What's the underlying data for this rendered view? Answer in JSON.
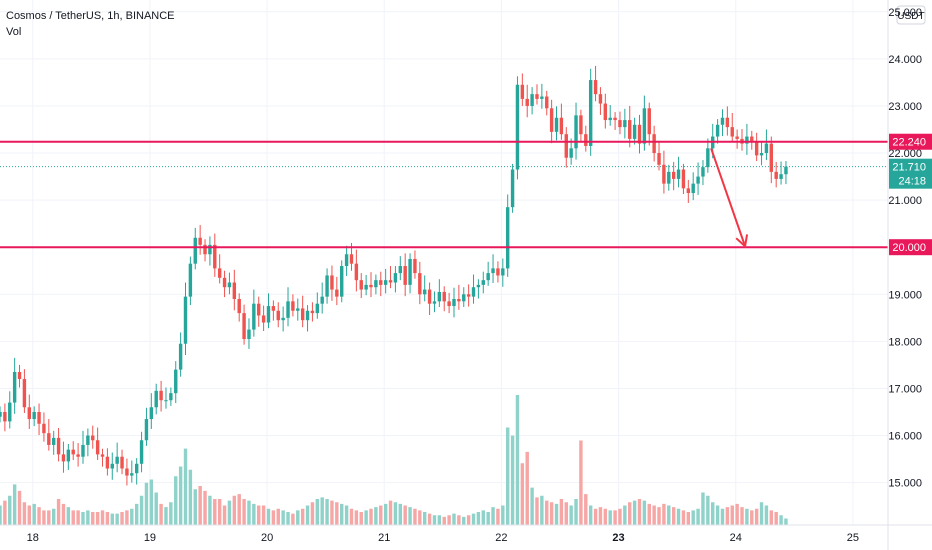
{
  "header": {
    "symbol": "Cosmos / TetherUS, 1h, BINANCE",
    "volume_label": "Vol",
    "currency": "USDT"
  },
  "price_tag": {
    "value": "21.710",
    "countdown": "24:18"
  },
  "colors": {
    "up": "#26a69a",
    "down": "#ef5350",
    "up_volume": "#8fd2c9",
    "down_volume": "#f5a6a5",
    "level_line": "#e8185b",
    "arrow": "#f23645",
    "grid": "#f0f3fa",
    "axis_text": "#131722"
  },
  "chart_data": {
    "type": "candlestick",
    "ylim": [
      14.1,
      25.25
    ],
    "y_ticks": [
      15.0,
      16.0,
      17.0,
      18.0,
      19.0,
      20.0,
      21.0,
      22.0,
      23.0,
      24.0,
      25.0
    ],
    "y_tick_labels": [
      "15.000",
      "16.000",
      "17.000",
      "18.000",
      "19.000",
      "20.000",
      "21.000",
      "22.000",
      "23.000",
      "24.000",
      "25.000"
    ],
    "x_ticks": [
      18,
      19,
      20,
      21,
      22,
      23,
      24,
      25
    ],
    "x_tick_labels": [
      "18",
      "19",
      "20",
      "21",
      "22",
      "23",
      "24",
      "25"
    ],
    "xlim": [
      17.72,
      25.3
    ],
    "candle_start": 17.72,
    "candle_interval_days": 0.04167,
    "closes": [
      16.5,
      16.3,
      16.7,
      17.35,
      17.2,
      16.6,
      16.35,
      16.5,
      16.25,
      16.05,
      15.8,
      15.95,
      15.6,
      15.45,
      15.7,
      15.6,
      15.55,
      15.8,
      16.0,
      15.9,
      15.6,
      15.55,
      15.3,
      15.4,
      15.55,
      15.3,
      15.15,
      15.2,
      15.4,
      15.9,
      16.35,
      16.6,
      16.95,
      16.75,
      16.75,
      16.9,
      17.4,
      17.95,
      18.95,
      19.65,
      20.2,
      20.05,
      19.85,
      20.05,
      19.55,
      19.35,
      19.15,
      19.25,
      18.9,
      18.6,
      18.05,
      18.25,
      18.8,
      18.55,
      18.4,
      18.75,
      18.65,
      18.45,
      18.5,
      18.85,
      18.65,
      18.7,
      18.45,
      18.65,
      18.6,
      18.8,
      18.95,
      19.4,
      19.1,
      18.95,
      19.6,
      19.85,
      19.65,
      19.3,
      19.1,
      19.2,
      19.15,
      19.3,
      19.2,
      19.3,
      19.25,
      19.45,
      19.6,
      19.2,
      19.75,
      19.45,
      19.0,
      19.1,
      18.8,
      18.85,
      19.05,
      18.85,
      18.75,
      18.9,
      18.85,
      19.0,
      18.95,
      19.15,
      19.2,
      19.3,
      19.45,
      19.55,
      19.4,
      19.55,
      20.85,
      21.65,
      23.45,
      23.15,
      23.0,
      23.25,
      23.15,
      23.2,
      22.95,
      22.45,
      22.75,
      22.4,
      21.9,
      22.1,
      22.8,
      22.4,
      22.15,
      23.55,
      23.25,
      23.05,
      22.7,
      22.75,
      22.7,
      22.55,
      22.7,
      22.3,
      22.6,
      22.2,
      22.95,
      22.4,
      22.0,
      21.75,
      21.35,
      21.6,
      21.45,
      21.65,
      21.25,
      21.15,
      21.35,
      21.5,
      21.7,
      22.1,
      22.35,
      22.6,
      22.75,
      22.55,
      22.35,
      22.3,
      22.2,
      22.35,
      22.25,
      21.95,
      22.0,
      22.2,
      21.6,
      21.45,
      21.55,
      21.71
    ],
    "volumes": [
      1.2,
      1.5,
      1.8,
      2.5,
      2.1,
      1.4,
      1.2,
      1.3,
      1.1,
      0.9,
      0.9,
      1.0,
      1.6,
      1.3,
      1.1,
      0.9,
      0.9,
      0.8,
      0.9,
      0.8,
      0.8,
      0.9,
      0.8,
      0.7,
      0.7,
      0.8,
      0.9,
      1.0,
      1.3,
      1.8,
      2.6,
      2.8,
      2.0,
      1.3,
      1.1,
      1.4,
      3.0,
      3.6,
      4.7,
      3.4,
      2.2,
      2.4,
      2.1,
      1.8,
      1.6,
      1.6,
      1.2,
      1.5,
      1.8,
      1.9,
      1.6,
      1.5,
      1.3,
      1.2,
      1.2,
      1.0,
      0.9,
      1.0,
      0.9,
      0.8,
      0.7,
      0.9,
      1.0,
      1.2,
      1.4,
      1.6,
      1.7,
      1.6,
      1.5,
      1.4,
      1.3,
      1.2,
      1.0,
      0.9,
      0.8,
      0.9,
      1.0,
      1.1,
      1.2,
      1.3,
      1.5,
      1.4,
      1.3,
      1.2,
      1.1,
      1.0,
      0.9,
      0.8,
      0.7,
      0.6,
      0.6,
      0.5,
      0.6,
      0.7,
      0.6,
      0.5,
      0.6,
      0.7,
      0.8,
      0.9,
      0.8,
      1.1,
      1.0,
      1.2,
      6.0,
      5.5,
      8.0,
      3.8,
      4.5,
      2.3,
      1.7,
      1.8,
      1.5,
      1.4,
      1.3,
      1.6,
      1.4,
      1.2,
      1.6,
      5.2,
      1.9,
      1.2,
      1.0,
      1.1,
      1.0,
      0.9,
      0.9,
      1.0,
      1.2,
      1.4,
      1.5,
      1.6,
      1.5,
      1.3,
      1.2,
      1.1,
      1.3,
      1.2,
      1.1,
      1.0,
      0.9,
      0.8,
      0.9,
      1.0,
      2.0,
      1.8,
      1.4,
      1.2,
      1.0,
      1.1,
      1.2,
      1.3,
      1.1,
      1.0,
      0.9,
      1.0,
      1.4,
      1.2,
      0.9,
      0.8,
      0.6,
      0.4
    ],
    "horizontal_levels": [
      22.24,
      20.0
    ],
    "current_price": 21.71,
    "annotation_arrow": {
      "from": [
        23.79,
        22.1
      ],
      "to": [
        24.08,
        20.02
      ]
    }
  }
}
